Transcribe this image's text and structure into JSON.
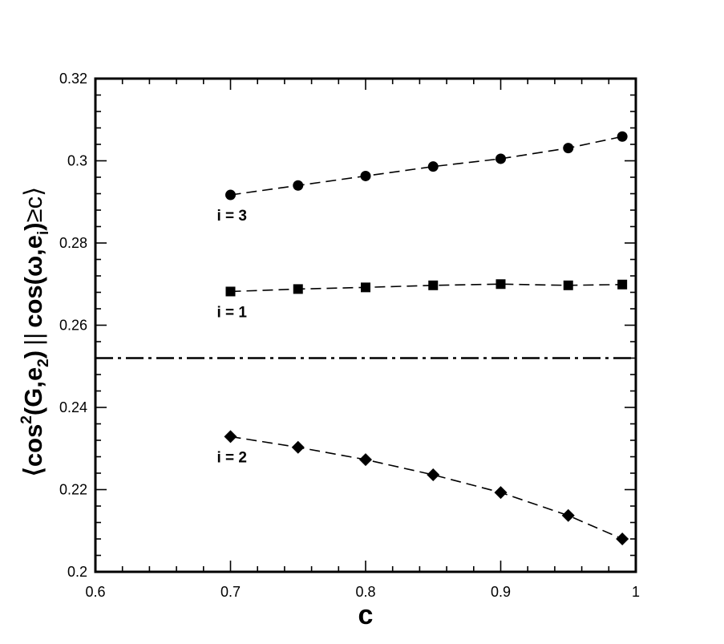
{
  "chart_data": {
    "type": "line",
    "xlabel": "c",
    "ylabel": {
      "open": "⟨cos",
      "sup": "2",
      "mid": "(G,e",
      "sub": "2",
      "mid2": ")",
      "cond_bar": "||",
      "cond_open": "cos(ω,e",
      "cond_sub": "i",
      "cond_close": ")",
      "cond_tail": "≥c⟩"
    },
    "xlim": [
      0.6,
      1.0
    ],
    "ylim": [
      0.2,
      0.32
    ],
    "xticks": [
      "0.6",
      "0.7",
      "0.8",
      "0.9",
      "1"
    ],
    "yticks": [
      "0.2",
      "0.22",
      "0.24",
      "0.26",
      "0.28",
      "0.3",
      "0.32"
    ],
    "x": [
      0.7,
      0.75,
      0.8,
      0.85,
      0.9,
      0.95,
      0.99
    ],
    "series": [
      {
        "name": "i = 3",
        "marker": "circle",
        "values": [
          0.2917,
          0.294,
          0.2963,
          0.2986,
          0.3005,
          0.3031,
          0.3059
        ]
      },
      {
        "name": "i = 1",
        "marker": "square",
        "values": [
          0.2682,
          0.2688,
          0.2692,
          0.2697,
          0.27,
          0.2697,
          0.2699
        ]
      },
      {
        "name": "i = 2",
        "marker": "diamond",
        "values": [
          0.2329,
          0.2303,
          0.2273,
          0.2236,
          0.2193,
          0.2137,
          0.208
        ]
      }
    ],
    "reference_line": {
      "y": 0.252,
      "style": "dash-dot"
    },
    "grid": false,
    "legend": "none"
  }
}
